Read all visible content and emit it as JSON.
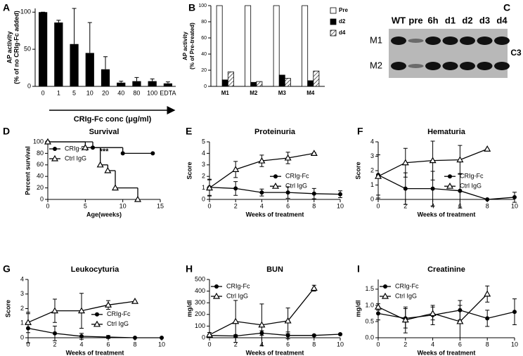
{
  "chart_data": [
    {
      "label": "A",
      "type": "bar",
      "categories": [
        "0",
        "1",
        "5",
        "10",
        "20",
        "40",
        "80",
        "100",
        "EDTA"
      ],
      "values": [
        100,
        86,
        57,
        45,
        23,
        5,
        7,
        7,
        4
      ],
      "errors": [
        0,
        3,
        48,
        41,
        17,
        2,
        5,
        3,
        2
      ],
      "color": "#000000",
      "ylim": [
        0,
        105
      ],
      "yticks": [
        0,
        50,
        100
      ],
      "ylabel": [
        "AP activity",
        "(% of no CRIg-Fc added)"
      ],
      "xlabel": "CRIg-Fc conc (μg/ml)"
    },
    {
      "label": "B",
      "type": "bar",
      "categories": [
        "M1",
        "M2",
        "M3",
        "M4"
      ],
      "series": [
        {
          "name": "Pre",
          "color": "#ffffff",
          "values": [
            100,
            100,
            100,
            100
          ]
        },
        {
          "name": "d2",
          "color": "#000000",
          "values": [
            8,
            5,
            14,
            7
          ]
        },
        {
          "name": "d4",
          "color": "#000000",
          "hatch": true,
          "values": [
            18,
            6,
            10,
            19
          ]
        }
      ],
      "ylim": [
        0,
        100
      ],
      "yticks": [
        0,
        20,
        40,
        60,
        80,
        100
      ],
      "ylabel": [
        "AP activity",
        "(% of Pre-treated)"
      ],
      "legend": "right"
    },
    {
      "label": "D",
      "type": "line",
      "step": true,
      "title": "Survival",
      "series": [
        {
          "name": "CRIg-Fc",
          "marker": "circle",
          "x": [
            0,
            6,
            10,
            14
          ],
          "values": [
            100,
            90,
            80,
            80
          ]
        },
        {
          "name": "Ctrl IgG",
          "marker": "triangle",
          "x": [
            0,
            5,
            7,
            8,
            9,
            12
          ],
          "values": [
            100,
            90,
            60,
            50,
            20,
            0
          ]
        }
      ],
      "xlim": [
        0,
        15
      ],
      "xticks": [
        0,
        5,
        10,
        15
      ],
      "ylim": [
        0,
        100
      ],
      "yticks": [
        0,
        20,
        40,
        60,
        80,
        100
      ],
      "ylabel": "Percent survival",
      "xlabel": "Age(weeks)",
      "annotation": "***",
      "legend": "upper left"
    },
    {
      "label": "E",
      "type": "line",
      "title": "Proteinuria",
      "x": [
        0,
        2,
        4,
        6,
        8,
        10
      ],
      "series": [
        {
          "name": "CRIg-Fc",
          "marker": "circle",
          "values": [
            1.05,
            0.95,
            0.6,
            0.6,
            0.5,
            0.45
          ],
          "errors": [
            0.7,
            0.6,
            0.3,
            0.5,
            0.45,
            0.3
          ]
        },
        {
          "name": "Ctrl IgG",
          "marker": "triangle",
          "values": [
            1.0,
            2.6,
            3.35,
            3.6,
            4.0,
            null
          ],
          "errors": [
            0.7,
            0.7,
            0.5,
            0.5,
            0.05,
            null
          ]
        }
      ],
      "xlim": [
        0,
        10
      ],
      "xticks": [
        0,
        2,
        4,
        6,
        8,
        10
      ],
      "ylim": [
        0,
        5
      ],
      "yticks": [
        0,
        1,
        2,
        3,
        4,
        5
      ],
      "ylabel": "Score",
      "xlabel": "Weeks of treatment",
      "legend": "right"
    },
    {
      "label": "F",
      "type": "line",
      "title": "Hematuria",
      "x": [
        0,
        2,
        4,
        6,
        8,
        10
      ],
      "series": [
        {
          "name": "CRIg-Fc",
          "marker": "circle",
          "values": [
            1.7,
            0.75,
            0.75,
            0.6,
            0,
            0.15
          ],
          "errors": [
            1.4,
            1.1,
            1.2,
            1.2,
            0,
            0.35
          ]
        },
        {
          "name": "Ctrl IgG",
          "marker": "triangle",
          "values": [
            1.6,
            2.55,
            2.7,
            2.75,
            3.5,
            null
          ],
          "errors": [
            1.5,
            1.0,
            1.35,
            1.0,
            0,
            null
          ]
        }
      ],
      "xlim": [
        0,
        10
      ],
      "xticks": [
        0,
        2,
        4,
        6,
        8,
        10
      ],
      "ylim": [
        0,
        4
      ],
      "yticks": [
        0,
        1,
        2,
        3,
        4
      ],
      "ylabel": "Score",
      "xlabel": "Weeks of treatment",
      "legend": "right"
    },
    {
      "label": "G",
      "type": "line",
      "title": "Leukocyturia",
      "x": [
        0,
        2,
        4,
        6,
        8,
        10
      ],
      "series": [
        {
          "name": "CRIg-Fc",
          "marker": "circle",
          "values": [
            0.65,
            0.3,
            0.1,
            0.05,
            0,
            0
          ],
          "errors": [
            1.0,
            0.5,
            0.2,
            0.1,
            0,
            0
          ]
        },
        {
          "name": "Ctrl IgG",
          "marker": "triangle",
          "values": [
            1.05,
            1.85,
            1.85,
            2.25,
            2.5,
            null
          ],
          "errors": [
            0.7,
            0.8,
            1.2,
            0.3,
            0,
            null
          ]
        }
      ],
      "xlim": [
        0,
        10
      ],
      "xticks": [
        0,
        2,
        4,
        6,
        8,
        10
      ],
      "ylim": [
        0,
        4
      ],
      "yticks": [
        0,
        1,
        2,
        3,
        4
      ],
      "ylabel": "Score",
      "xlabel": "Weeks of treatment",
      "legend": "right"
    },
    {
      "label": "H",
      "type": "line",
      "title": "BUN",
      "x": [
        0,
        2,
        4,
        6,
        8,
        10
      ],
      "series": [
        {
          "name": "CRIg-Fc",
          "marker": "circle",
          "values": [
            20,
            15,
            40,
            20,
            20,
            30
          ],
          "errors": [
            10,
            10,
            20,
            30,
            5,
            5
          ]
        },
        {
          "name": "Ctrl IgG",
          "marker": "triangle",
          "values": [
            25,
            140,
            110,
            145,
            425,
            null
          ],
          "errors": [
            20,
            180,
            180,
            110,
            25,
            null
          ]
        }
      ],
      "xlim": [
        0,
        10
      ],
      "xticks": [
        0,
        2,
        4,
        6,
        8,
        10
      ],
      "ylim": [
        0,
        500
      ],
      "yticks": [
        0,
        100,
        200,
        300,
        400,
        500
      ],
      "ylabel": "mg/dl",
      "xlabel": "Weeks of treatment",
      "legend": "upper left"
    },
    {
      "label": "I",
      "type": "line",
      "title": "Creatinine",
      "x": [
        0,
        2,
        4,
        6,
        8,
        10
      ],
      "series": [
        {
          "name": "CRIg-Fc",
          "marker": "circle",
          "values": [
            0.75,
            0.6,
            0.7,
            0.85,
            0.6,
            0.8
          ],
          "errors": [
            0.2,
            0.3,
            0.3,
            0.3,
            0.25,
            0.4
          ]
        },
        {
          "name": "Ctrl IgG",
          "marker": "triangle",
          "values": [
            0.95,
            0.55,
            0.75,
            0.5,
            1.35,
            null
          ],
          "errors": [
            0.1,
            0.4,
            0.2,
            0.5,
            0.25,
            null
          ]
        }
      ],
      "xlim": [
        0,
        10
      ],
      "xticks": [
        0,
        2,
        4,
        6,
        8,
        10
      ],
      "ylim": [
        0,
        1.8
      ],
      "yticks": [
        {
          "value": 0,
          "label": "0.0"
        },
        0.5,
        {
          "value": 1,
          "label": "1.0"
        },
        1.5
      ],
      "ylabel": "mg/dl",
      "xlabel": "Weeks of treatment",
      "legend": "upper left"
    }
  ],
  "blot": {
    "label": "C",
    "lanes": [
      "WT",
      "pre",
      "6h",
      "d1",
      "d2",
      "d3",
      "d4"
    ],
    "rows": [
      "M1",
      "M2"
    ],
    "protein": "C3"
  }
}
